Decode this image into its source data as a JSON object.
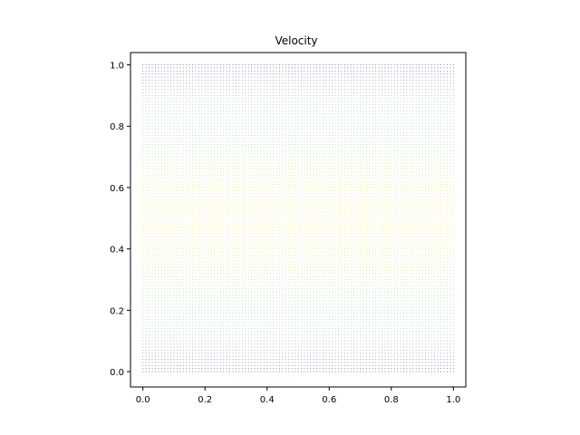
{
  "chart_data": {
    "type": "scatter",
    "title": "Velocity",
    "xlabel": "",
    "ylabel": "",
    "xlim": [
      -0.04,
      1.04
    ],
    "ylim": [
      -0.05,
      1.04
    ],
    "x_ticks": [
      0.0,
      0.2,
      0.4,
      0.6,
      0.8,
      1.0
    ],
    "y_ticks": [
      0.0,
      0.2,
      0.4,
      0.6,
      0.8,
      1.0
    ],
    "x_tick_labels": [
      "0.0",
      "0.2",
      "0.4",
      "0.6",
      "0.8",
      "1.0"
    ],
    "y_tick_labels": [
      "0.0",
      "0.2",
      "0.4",
      "0.6",
      "0.8",
      "1.0"
    ],
    "grid": false,
    "legend": false,
    "colormap": "viridis",
    "field": "parabolic channel-flow velocity, maximal at y = 0.5, zero at y = 0 and y = 1",
    "grid_points": {
      "x_count": 101,
      "y_count": 101,
      "x_range": [
        0,
        1
      ],
      "y_range": [
        0,
        1
      ]
    },
    "axis_color": "#000000",
    "background": "#ffffff"
  }
}
